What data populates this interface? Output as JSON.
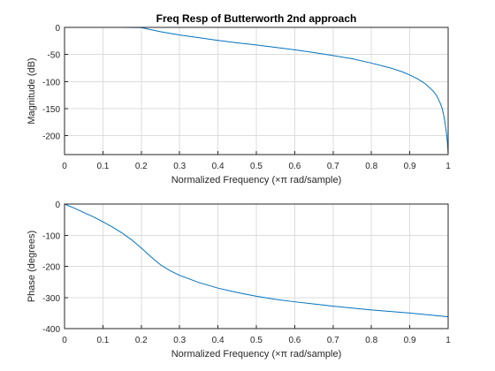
{
  "chart_data": [
    {
      "type": "line",
      "title": "Freq Resp of Butterworth 2nd approach",
      "xlabel": "Normalized Frequency  (×π rad/sample)",
      "ylabel": "Magnitude (dB)",
      "xlim": [
        0,
        1
      ],
      "ylim": [
        -235,
        0
      ],
      "xticks": [
        "0",
        "0.1",
        "0.2",
        "0.3",
        "0.4",
        "0.5",
        "0.6",
        "0.7",
        "0.8",
        "0.9",
        "1"
      ],
      "yticks": [
        "0",
        "-50",
        "-100",
        "-150",
        "-200"
      ],
      "grid": true,
      "color": "#0072bd",
      "series": [
        {
          "x": [
            0,
            0.05,
            0.1,
            0.15,
            0.2,
            0.25,
            0.3,
            0.35,
            0.4,
            0.45,
            0.5,
            0.55,
            0.6,
            0.65,
            0.7,
            0.75,
            0.8,
            0.85,
            0.88,
            0.9,
            0.92,
            0.94,
            0.96,
            0.97,
            0.98,
            0.985,
            0.99,
            0.995,
            0.998,
            1.0
          ],
          "y": [
            0,
            0,
            0,
            0,
            -0.5,
            -8,
            -14,
            -19,
            -24,
            -28.5,
            -32.5,
            -37,
            -41.5,
            -46.5,
            -52,
            -58,
            -66,
            -75,
            -82,
            -88,
            -95,
            -104,
            -117,
            -126,
            -141,
            -151,
            -168,
            -192,
            -212,
            -235
          ]
        }
      ]
    },
    {
      "type": "line",
      "title": "",
      "xlabel": "Normalized Frequency  (×π rad/sample)",
      "ylabel": "Phase (degrees)",
      "xlim": [
        0,
        1
      ],
      "ylim": [
        -400,
        0
      ],
      "xticks": [
        "0",
        "0.1",
        "0.2",
        "0.3",
        "0.4",
        "0.5",
        "0.6",
        "0.7",
        "0.8",
        "0.9",
        "1"
      ],
      "yticks": [
        "0",
        "-100",
        "-200",
        "-300",
        "-400"
      ],
      "grid": true,
      "color": "#0072bd",
      "series": [
        {
          "x": [
            0,
            0.025,
            0.05,
            0.075,
            0.1,
            0.125,
            0.15,
            0.175,
            0.2,
            0.225,
            0.25,
            0.275,
            0.3,
            0.35,
            0.4,
            0.45,
            0.5,
            0.55,
            0.6,
            0.65,
            0.7,
            0.75,
            0.8,
            0.85,
            0.9,
            0.95,
            1.0
          ],
          "y": [
            0,
            -13,
            -27,
            -41,
            -57,
            -74,
            -93,
            -115,
            -141,
            -169,
            -195,
            -214,
            -229,
            -252,
            -270,
            -284,
            -296,
            -306,
            -314,
            -321,
            -328,
            -334,
            -340,
            -345,
            -350,
            -356,
            -362
          ]
        }
      ]
    }
  ]
}
